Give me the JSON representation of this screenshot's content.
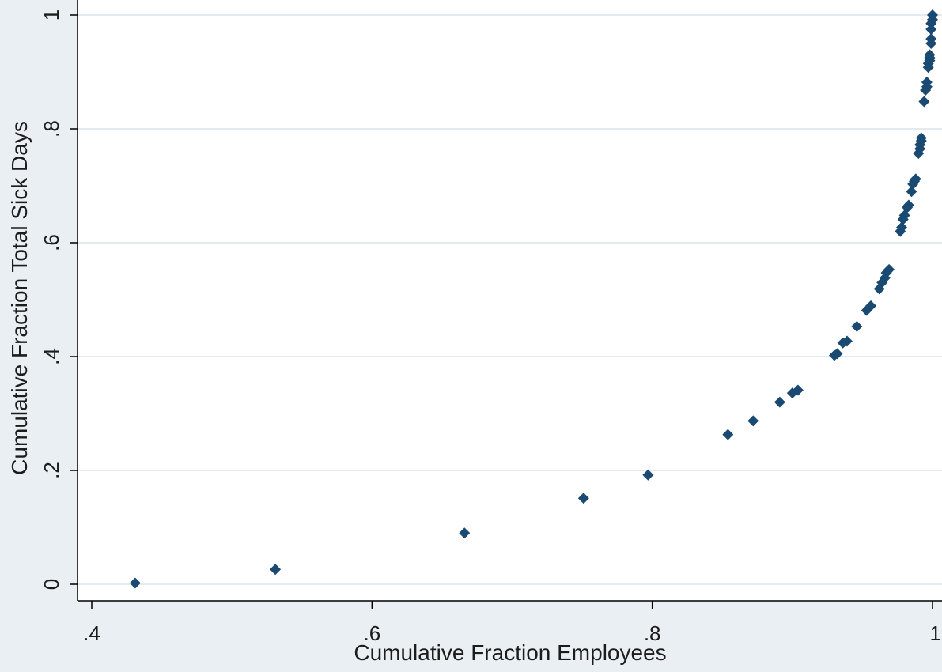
{
  "chart_data": {
    "type": "scatter",
    "xlabel": "Cumulative Fraction Employees",
    "ylabel": "Cumulative Fraction Total Sick Days",
    "xlim": [
      0.4,
      1.0
    ],
    "ylim": [
      0,
      1.0
    ],
    "x_ticks": [
      ".4",
      ".6",
      ".8",
      "1"
    ],
    "y_ticks": [
      "0",
      ".2",
      ".4",
      ".6",
      ".8",
      "1"
    ],
    "grid": "horizontal",
    "marker_color": "#1a4a72",
    "plot_background": "#ffffff",
    "outer_background": "#e9eff2",
    "points": [
      [
        0.431,
        0.002
      ],
      [
        0.531,
        0.026
      ],
      [
        0.666,
        0.09
      ],
      [
        0.751,
        0.151
      ],
      [
        0.797,
        0.192
      ],
      [
        0.854,
        0.263
      ],
      [
        0.872,
        0.287
      ],
      [
        0.891,
        0.32
      ],
      [
        0.9,
        0.336
      ],
      [
        0.904,
        0.341
      ],
      [
        0.93,
        0.402
      ],
      [
        0.932,
        0.405
      ],
      [
        0.936,
        0.424
      ],
      [
        0.939,
        0.427
      ],
      [
        0.946,
        0.453
      ],
      [
        0.953,
        0.481
      ],
      [
        0.956,
        0.489
      ],
      [
        0.962,
        0.519
      ],
      [
        0.964,
        0.53
      ],
      [
        0.966,
        0.538
      ],
      [
        0.967,
        0.547
      ],
      [
        0.969,
        0.553
      ],
      [
        0.977,
        0.62
      ],
      [
        0.978,
        0.627
      ],
      [
        0.979,
        0.641
      ],
      [
        0.98,
        0.648
      ],
      [
        0.982,
        0.662
      ],
      [
        0.983,
        0.666
      ],
      [
        0.985,
        0.69
      ],
      [
        0.986,
        0.703
      ],
      [
        0.987,
        0.708
      ],
      [
        0.988,
        0.712
      ],
      [
        0.99,
        0.757
      ],
      [
        0.991,
        0.765
      ],
      [
        0.991,
        0.772
      ],
      [
        0.992,
        0.779
      ],
      [
        0.992,
        0.784
      ],
      [
        0.994,
        0.848
      ],
      [
        0.995,
        0.868
      ],
      [
        0.996,
        0.874
      ],
      [
        0.996,
        0.882
      ],
      [
        0.997,
        0.908
      ],
      [
        0.997,
        0.915
      ],
      [
        0.998,
        0.92
      ],
      [
        0.998,
        0.925
      ],
      [
        0.998,
        0.93
      ],
      [
        0.999,
        0.95
      ],
      [
        0.999,
        0.958
      ],
      [
        0.999,
        0.975
      ],
      [
        0.999,
        0.985
      ],
      [
        1.0,
        0.992
      ],
      [
        1.0,
        1.0
      ]
    ]
  }
}
